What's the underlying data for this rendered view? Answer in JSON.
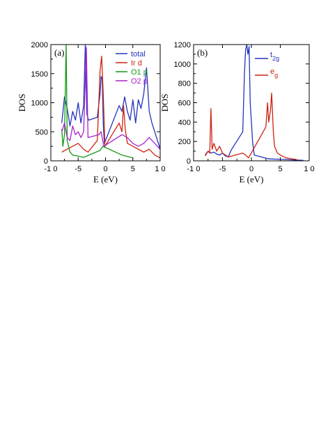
{
  "chart_data": [
    {
      "panel_label": "(a)",
      "type": "line",
      "xlabel": "E (eV)",
      "ylabel": "DOS",
      "xlim": [
        -10,
        10
      ],
      "ylim": [
        0,
        2000
      ],
      "x_ticks": [
        -10,
        -5,
        0,
        5,
        10
      ],
      "x_tick_labels": [
        "-1 0",
        "-5",
        "0",
        "5",
        "1 0"
      ],
      "y_ticks": [
        0,
        500,
        1000,
        1500,
        2000
      ],
      "y_tick_labels": [
        "0",
        "500",
        "1000",
        "1500",
        "2000"
      ],
      "grid": false,
      "legend_position": "top-right",
      "series": [
        {
          "name": "total",
          "color": "#2233bb",
          "x": [
            -8.0,
            -7.5,
            -7.0,
            -6.5,
            -6.0,
            -5.5,
            -5.0,
            -4.5,
            -4.0,
            -3.7,
            -3.4,
            -3.1,
            -1.5,
            -1.0,
            -0.8,
            -0.6,
            -0.4,
            -0.2,
            2.5,
            3.0,
            3.5,
            4.0,
            4.5,
            5.0,
            5.5,
            6.0,
            6.5,
            7.0,
            7.5,
            8.0,
            8.5,
            9.0,
            9.5,
            10.0
          ],
          "y": [
            650,
            1100,
            900,
            600,
            850,
            700,
            1000,
            650,
            950,
            2000,
            800,
            700,
            750,
            1150,
            1450,
            1400,
            600,
            300,
            950,
            850,
            1100,
            850,
            700,
            1050,
            650,
            1050,
            900,
            1150,
            1600,
            850,
            650,
            500,
            350,
            200
          ]
        },
        {
          "name": "Ir d",
          "color": "#cc2211",
          "x": [
            -8.0,
            -7.0,
            -6.0,
            -5.0,
            -4.0,
            -3.2,
            -1.5,
            -1.0,
            -0.7,
            -0.4,
            -0.1,
            2.5,
            3.0,
            3.3,
            3.6,
            4.0,
            5.0,
            6.0,
            7.0,
            8.0,
            9.0,
            10.0
          ],
          "y": [
            150,
            200,
            250,
            300,
            200,
            150,
            350,
            1550,
            1800,
            1100,
            250,
            650,
            500,
            950,
            550,
            300,
            250,
            200,
            150,
            200,
            100,
            50
          ]
        },
        {
          "name": "O1 p",
          "color": "#119911",
          "x": [
            -8.0,
            -7.8,
            -7.5,
            -7.2,
            -7.0,
            -6.5,
            -6.0,
            -5.0,
            -4.0,
            -1.0,
            -0.5,
            3.0,
            5.0
          ],
          "y": [
            550,
            250,
            450,
            2000,
            350,
            150,
            100,
            80,
            60,
            180,
            250,
            100,
            50
          ]
        },
        {
          "name": "O2 p",
          "color": "#aa22cc",
          "x": [
            -8.0,
            -7.5,
            -7.0,
            -6.5,
            -6.0,
            -5.5,
            -5.0,
            -4.5,
            -4.0,
            -3.5,
            -3.2,
            -1.2,
            -0.8,
            -0.3,
            3.0,
            4.0,
            5.0,
            6.0,
            7.0,
            8.0,
            9.0,
            10.0
          ],
          "y": [
            500,
            650,
            400,
            350,
            600,
            450,
            500,
            400,
            500,
            1950,
            400,
            450,
            500,
            250,
            450,
            400,
            300,
            250,
            300,
            400,
            300,
            200
          ]
        }
      ]
    },
    {
      "panel_label": "(b)",
      "type": "line",
      "xlabel": "E (eV)",
      "ylabel": "DOS",
      "xlim": [
        -10,
        10
      ],
      "ylim": [
        0,
        1200
      ],
      "x_ticks": [
        -10,
        -5,
        0,
        5,
        10
      ],
      "x_tick_labels": [
        "-1 0",
        "-5",
        "0",
        "5",
        "1 0"
      ],
      "y_ticks": [
        0,
        200,
        400,
        600,
        800,
        1000,
        1200
      ],
      "y_tick_labels": [
        "0",
        "200",
        "400",
        "600",
        "800",
        "1000",
        "1200"
      ],
      "grid": false,
      "legend_position": "top-right",
      "series": [
        {
          "name": "t2g",
          "legend_main": "t",
          "legend_sub": "2g",
          "color": "#2233bb",
          "x": [
            -8.0,
            -7.5,
            -7.0,
            -6.5,
            -6.0,
            -5.5,
            -5.0,
            -4.5,
            -4.0,
            -3.5,
            -1.5,
            -1.2,
            -1.0,
            -0.8,
            -0.6,
            -0.4,
            -0.2,
            0.2,
            0.5,
            3.0,
            5.0,
            7.0,
            9.0
          ],
          "y": [
            60,
            100,
            80,
            90,
            70,
            60,
            80,
            50,
            40,
            110,
            300,
            900,
            1150,
            1200,
            1100,
            1180,
            600,
            200,
            60,
            20,
            15,
            10,
            5
          ]
        },
        {
          "name": "eg",
          "legend_main": "e",
          "legend_sub": "g",
          "color": "#cc2211",
          "x": [
            -8.0,
            -7.5,
            -7.2,
            -7.0,
            -6.8,
            -6.5,
            -6.0,
            -5.5,
            -5.0,
            -4.5,
            -4.0,
            -1.5,
            -1.0,
            -0.5,
            2.5,
            2.8,
            3.0,
            3.3,
            3.5,
            3.8,
            4.0,
            4.5,
            5.0,
            6.0,
            7.0,
            8.0
          ],
          "y": [
            50,
            100,
            80,
            540,
            120,
            180,
            100,
            150,
            80,
            60,
            40,
            80,
            60,
            30,
            350,
            600,
            400,
            520,
            700,
            300,
            150,
            80,
            60,
            30,
            20,
            10
          ]
        }
      ]
    }
  ]
}
